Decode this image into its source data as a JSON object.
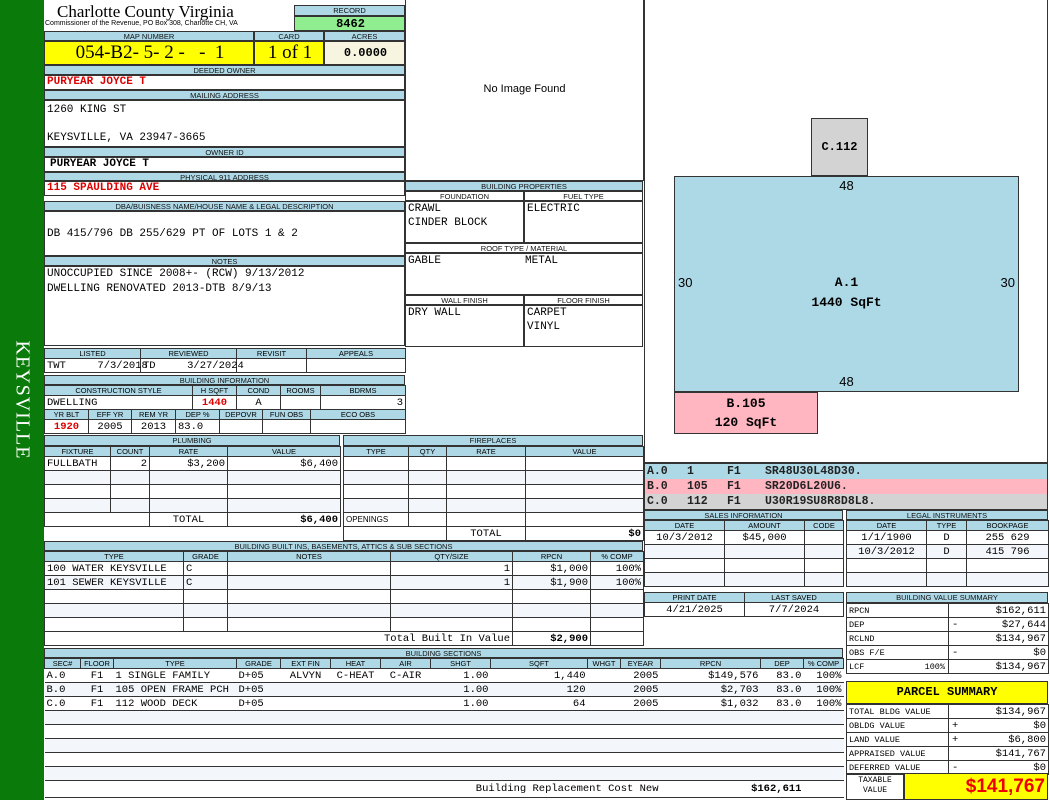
{
  "sidebar": {
    "label": "KEYSVILLE",
    "color": "#0a7a0a"
  },
  "header": {
    "title": "Charlotte County Virginia",
    "subtitle": "Commissioner of the Revenue, PO Box 308, Charlotte CH, VA",
    "record_label": "RECORD",
    "record": "8462"
  },
  "parcel": {
    "map_label": "MAP NUMBER",
    "map": "054-B2- 5- 2 -   -  1",
    "card_label": "CARD",
    "card": "1 of 1",
    "acres_label": "ACRES",
    "acres": "0.0000"
  },
  "owner": {
    "deeded_label": "DEEDED OWNER",
    "deeded": "PURYEAR JOYCE T",
    "mailing_label": "MAILING ADDRESS",
    "mailing1": "1260 KING ST",
    "mailing2": "KEYSVILLE, VA 23947-3665",
    "owner_id_label": "OWNER ID",
    "owner_id": "PURYEAR JOYCE T",
    "address_label": "PHYSICAL 911 ADDRESS",
    "address": "115 SPAULDING AVE"
  },
  "legal": {
    "label": "DBA/BUISNESS NAME/HOUSE NAME & LEGAL DESCRIPTION",
    "text": "DB 415/796 DB 255/629 PT OF LOTS 1 & 2"
  },
  "notes": {
    "label": "NOTES",
    "lines": [
      "UNOCCUPIED SINCE 2008+- (RCW) 9/13/2012",
      "DWELLING RENOVATED 2013-DTB 8/9/13"
    ]
  },
  "image": {
    "text": "No Image Found"
  },
  "building_properties": {
    "label": "BUILDING PROPERTIES",
    "foundation_label": "FOUNDATION",
    "foundation": [
      "CRAWL",
      "CINDER BLOCK"
    ],
    "fuel_label": "FUEL TYPE",
    "fuel": "ELECTRIC",
    "roof_label": "ROOF TYPE / MATERIAL",
    "roof_type": "GABLE",
    "roof_material": "METAL",
    "wall_label": "WALL FINISH",
    "wall": "DRY WALL",
    "floor_label": "FLOOR FINISH",
    "floor": [
      "CARPET",
      "VINYL"
    ]
  },
  "review": {
    "headers": [
      "LISTED",
      "REVIEWED",
      "REVISIT",
      "APPEALS"
    ],
    "listed": "TWT     7/3/2018",
    "reviewed": "TD     3/27/2024",
    "revisit": "",
    "appeals": ""
  },
  "building_info": {
    "label": "BUILDING INFORMATION",
    "headers": [
      "CONSTRUCTION STYLE",
      "H SQFT",
      "COND",
      "ROOMS",
      "BDRMS"
    ],
    "values": [
      "DWELLING",
      "1440",
      "A",
      "",
      "3"
    ],
    "headers2": [
      "YR BLT",
      "EFF YR",
      "REM YR",
      "DEP %",
      "DEPOVR",
      "FUN OBS",
      "ECO OBS"
    ],
    "values2": [
      "1920",
      "2005",
      "2013",
      "83.0",
      "",
      "",
      ""
    ]
  },
  "plumbing": {
    "label": "PLUMBING",
    "headers": [
      "FIXTURE",
      "COUNT",
      "RATE",
      "VALUE"
    ],
    "rows": [
      [
        "FULLBATH",
        "2",
        "$3,200",
        "$6,400"
      ]
    ],
    "total_label": "TOTAL",
    "total": "$6,400"
  },
  "fireplaces": {
    "label": "FIREPLACES",
    "headers": [
      "TYPE",
      "QTY",
      "RATE",
      "VALUE"
    ],
    "rows": [],
    "openings_label": "OPENINGS",
    "total_label": "TOTAL",
    "total": "$0"
  },
  "built_ins": {
    "label": "BUILDING BUILT INS, BASEMENTS, ATTICS & SUB SECTIONS",
    "headers": [
      "TYPE",
      "GRADE",
      "NOTES",
      "QTY/SIZE",
      "RPCN",
      "% COMP"
    ],
    "rows": [
      [
        "100 WATER KEYSVILLE",
        "C",
        "",
        "1",
        "$1,000",
        "100%"
      ],
      [
        "101 SEWER KEYSVILLE",
        "C",
        "",
        "1",
        "$1,900",
        "100%"
      ]
    ],
    "total_label": "Total Built In Value",
    "total": "$2,900"
  },
  "sections": {
    "label": "BUILDING SECTIONS",
    "headers": [
      "SEC#",
      "FLOOR",
      "TYPE",
      "GRADE",
      "EXT FIN",
      "HEAT",
      "AIR",
      "SHGT",
      "SQFT",
      "WHGT",
      "EYEAR",
      "RPCN",
      "DEP",
      "% COMP"
    ],
    "rows": [
      [
        "A.0",
        "F1",
        "1 SINGLE FAMILY",
        "D+05",
        "ALVYN",
        "C-HEAT",
        "C-AIR",
        "1.00",
        "1,440",
        "",
        "2005",
        "$149,576",
        "83.0",
        "100%"
      ],
      [
        "B.0",
        "F1",
        "105 OPEN FRAME PCH",
        "D+05",
        "",
        "",
        "",
        "1.00",
        "120",
        "",
        "2005",
        "$2,703",
        "83.0",
        "100%"
      ],
      [
        "C.0",
        "F1",
        "112 WOOD DECK",
        "D+05",
        "",
        "",
        "",
        "1.00",
        "64",
        "",
        "2005",
        "$1,032",
        "83.0",
        "100%"
      ]
    ],
    "total_label": "Building Replacement Cost New",
    "total": "$162,611"
  },
  "sketch": {
    "areas": [
      {
        "id": "A.1",
        "sqft": "1440 SqFt",
        "top": "48",
        "bottom": "48",
        "left": "30",
        "right": "30",
        "color": "#add8e6"
      },
      {
        "id": "B.105",
        "sqft": "120 SqFt",
        "color": "#ffb6c1"
      },
      {
        "id": "C.112",
        "color": "#d3d3d3"
      }
    ],
    "lines": [
      {
        "sec": "A.0",
        "code": "1",
        "floor": "F1",
        "path": "SR48U30L48D30.",
        "color": "#add8e6"
      },
      {
        "sec": "B.0",
        "code": "105",
        "floor": "F1",
        "path": "SR20D6L20U6.",
        "color": "#ffb6c1"
      },
      {
        "sec": "C.0",
        "code": "112",
        "floor": "F1",
        "path": "U30R19SU8R8D8L8.",
        "color": "#d3d3d3"
      }
    ]
  },
  "sales": {
    "label": "SALES INFORMATION",
    "headers": [
      "DATE",
      "AMOUNT",
      "CODE"
    ],
    "rows": [
      [
        "10/3/2012",
        "$45,000",
        ""
      ]
    ]
  },
  "instruments": {
    "label": "LEGAL INSTRUMENTS",
    "headers": [
      "DATE",
      "TYPE",
      "BOOKPAGE"
    ],
    "rows": [
      [
        "1/1/1900",
        "D",
        "255 629"
      ],
      [
        "10/3/2012",
        "D",
        "415 796"
      ]
    ]
  },
  "dates": {
    "print_label": "PRINT DATE",
    "print": "4/21/2025",
    "saved_label": "LAST SAVED",
    "saved": "7/7/2024"
  },
  "value_summary": {
    "label": "BUILDING VALUE SUMMARY",
    "rows": [
      {
        "label": "RPCN",
        "sign": "",
        "value": "$162,611"
      },
      {
        "label": "DEP",
        "sign": "-",
        "value": "$27,644"
      },
      {
        "label": "RCLND",
        "sign": "",
        "value": "$134,967"
      },
      {
        "label": "OBS F/E",
        "sign": "-",
        "value": "$0"
      },
      {
        "label": "LCF",
        "pct": "100%",
        "sign": "",
        "value": "$134,967"
      }
    ]
  },
  "parcel_summary": {
    "label": "PARCEL SUMMARY",
    "rows": [
      {
        "label": "TOTAL BLDG VALUE",
        "sign": "",
        "value": "$134,967"
      },
      {
        "label": "OBLDG VALUE",
        "sign": "+",
        "value": "$0"
      },
      {
        "label": "LAND VALUE",
        "sign": "+",
        "value": "$6,800"
      },
      {
        "label": "APPRAISED VALUE",
        "sign": "",
        "value": "$141,767"
      },
      {
        "label": "DEFERRED VALUE",
        "sign": "-",
        "value": "$0"
      }
    ],
    "taxable_label": "TAXABLE VALUE",
    "taxable": "$141,767"
  }
}
